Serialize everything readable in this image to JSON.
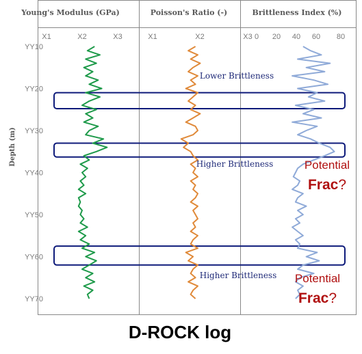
{
  "chart_data": {
    "type": "line",
    "title": "D-ROCK log",
    "ylabel": "Depth (m)",
    "depth_ticks": [
      "YY10",
      "YY20",
      "YY30",
      "YY40",
      "YY50",
      "YY60",
      "YY70"
    ],
    "depth": [
      10,
      11,
      12,
      13,
      14,
      15,
      16,
      17,
      18,
      19,
      20,
      21,
      22,
      23,
      24,
      25,
      26,
      27,
      28,
      29,
      30,
      31,
      32,
      33,
      34,
      35,
      36,
      37,
      38,
      39,
      40,
      41,
      42,
      43,
      44,
      45,
      46,
      47,
      48,
      49,
      50,
      51,
      52,
      53,
      54,
      55,
      56,
      57,
      58,
      59,
      60,
      61,
      62,
      63,
      64,
      65,
      66,
      67,
      68,
      69,
      70
    ],
    "ylim": [
      10,
      70
    ],
    "tracks": [
      {
        "name": "Young's Modulus (GPa)",
        "ticks": [
          "X1",
          "X2",
          "X3"
        ],
        "xlim": [
          1,
          3
        ],
        "color": "#1e9a4a",
        "values": [
          2.35,
          2.15,
          2.5,
          2.1,
          2.4,
          2.05,
          2.3,
          2.1,
          2.45,
          2.2,
          2.55,
          2.1,
          2.5,
          2.2,
          2.0,
          2.4,
          2.1,
          2.3,
          2.05,
          2.45,
          2.2,
          2.1,
          2.6,
          2.3,
          2.7,
          2.4,
          2.05,
          2.2,
          1.95,
          2.15,
          2.0,
          2.1,
          1.95,
          2.05,
          1.9,
          2.1,
          1.9,
          1.95,
          1.9,
          2.0,
          1.95,
          2.05,
          1.95,
          2.15,
          1.9,
          2.1,
          1.95,
          2.2,
          2.0,
          2.35,
          2.1,
          2.4,
          2.2,
          2.0,
          2.3,
          2.1,
          2.35,
          2.05,
          2.3,
          2.15,
          2.2
        ]
      },
      {
        "name": "Poisson's Ratio (-)",
        "ticks": [
          "X1",
          "X2",
          "X3"
        ],
        "xlim": [
          1,
          3
        ],
        "color": "#e08a3a",
        "values": [
          1.9,
          1.75,
          1.95,
          1.8,
          2.0,
          1.85,
          1.75,
          1.95,
          1.8,
          1.9,
          1.7,
          1.95,
          1.85,
          1.75,
          1.9,
          1.8,
          2.0,
          1.85,
          1.7,
          1.9,
          1.95,
          1.85,
          1.6,
          1.75,
          1.65,
          1.8,
          1.85,
          1.95,
          1.8,
          1.9,
          1.85,
          1.95,
          1.8,
          1.9,
          1.85,
          1.95,
          1.9,
          1.8,
          1.95,
          1.85,
          1.9,
          1.95,
          1.85,
          1.9,
          1.8,
          1.95,
          1.85,
          1.8,
          1.95,
          1.7,
          1.85,
          1.75,
          1.95,
          1.85,
          1.8,
          1.9,
          1.75,
          1.95,
          1.85,
          1.8,
          1.9
        ]
      },
      {
        "name": "Brittleness Index (%)",
        "ticks": [
          "0",
          "20",
          "40",
          "60",
          "80"
        ],
        "xlim": [
          0,
          80
        ],
        "color": "#8faad8",
        "values": [
          45,
          52,
          62,
          40,
          70,
          48,
          65,
          35,
          55,
          68,
          40,
          58,
          50,
          65,
          38,
          55,
          45,
          62,
          35,
          58,
          48,
          40,
          52,
          60,
          70,
          74,
          65,
          55,
          45,
          40,
          38,
          36,
          42,
          40,
          35,
          45,
          40,
          38,
          48,
          40,
          45,
          38,
          42,
          35,
          40,
          45,
          38,
          42,
          40,
          58,
          48,
          60,
          45,
          40,
          55,
          42,
          38,
          45,
          40,
          42,
          38
        ]
      }
    ],
    "annotations": [
      "Lower Brittleness",
      "Higher Brittleness",
      "Higher Brittleness"
    ],
    "highlight_depths": [
      [
        21.0,
        24.8
      ],
      [
        33.0,
        36.3
      ],
      [
        57.5,
        62.0
      ]
    ],
    "callouts": [
      {
        "line1": "Potential",
        "line2_bold": "Frac",
        "line2_tail": "?"
      },
      {
        "line1": "Potential",
        "line2_bold": "Frac",
        "line2_tail": "?"
      }
    ]
  }
}
